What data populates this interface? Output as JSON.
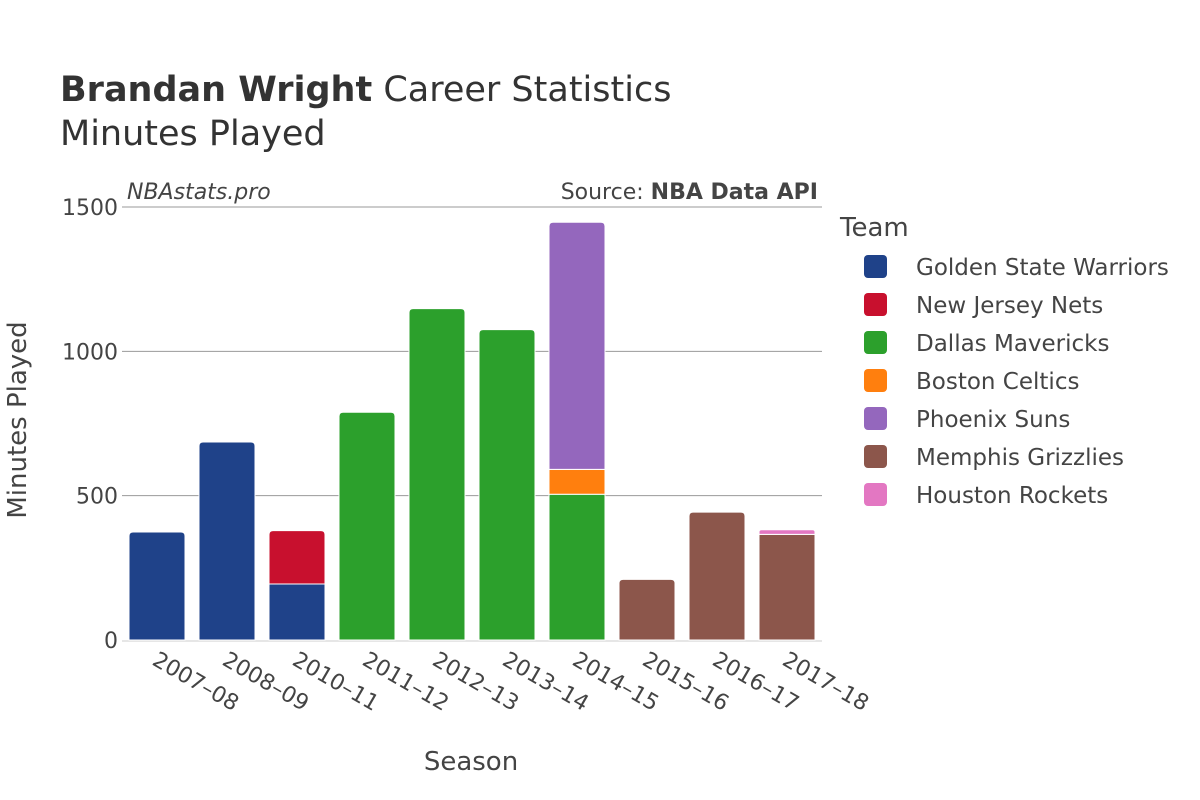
{
  "title": {
    "name": "Brandan Wright",
    "rest": "Career Statistics",
    "subtitle": "Minutes Played"
  },
  "credits": {
    "site": "NBAstats.pro",
    "source_prefix": "Source: ",
    "source_name": "NBA Data API"
  },
  "chart_data": {
    "type": "bar",
    "stacked": true,
    "xlabel": "Season",
    "ylabel": "Minutes Played",
    "ylim": [
      0,
      1500
    ],
    "yticks": [
      0,
      500,
      1000,
      1500
    ],
    "grid": true,
    "legend_title": "Team",
    "legend_position": "right",
    "categories": [
      "2007–08",
      "2008–09",
      "2010–11",
      "2011–12",
      "2012–13",
      "2013–14",
      "2014–15",
      "2015–16",
      "2016–17",
      "2017–18"
    ],
    "series": [
      {
        "name": "Golden State Warriors",
        "color": "#1f4289",
        "values": [
          374,
          686,
          194,
          0,
          0,
          0,
          0,
          0,
          0,
          0
        ]
      },
      {
        "name": "New Jersey Nets",
        "color": "#c8102e",
        "values": [
          0,
          0,
          185,
          0,
          0,
          0,
          0,
          0,
          0,
          0
        ]
      },
      {
        "name": "Dallas Mavericks",
        "color": "#2ca02c",
        "values": [
          0,
          0,
          0,
          789,
          1148,
          1075,
          505,
          0,
          0,
          0
        ]
      },
      {
        "name": "Boston Celtics",
        "color": "#ff7f0e",
        "values": [
          0,
          0,
          0,
          0,
          0,
          0,
          86,
          0,
          0,
          0
        ]
      },
      {
        "name": "Phoenix Suns",
        "color": "#9467bd",
        "values": [
          0,
          0,
          0,
          0,
          0,
          0,
          856,
          0,
          0,
          0
        ]
      },
      {
        "name": "Memphis Grizzlies",
        "color": "#8c564b",
        "values": [
          0,
          0,
          0,
          0,
          0,
          0,
          0,
          210,
          443,
          366
        ]
      },
      {
        "name": "Houston Rockets",
        "color": "#e377c2",
        "values": [
          0,
          0,
          0,
          0,
          0,
          0,
          0,
          0,
          0,
          16
        ]
      }
    ]
  }
}
